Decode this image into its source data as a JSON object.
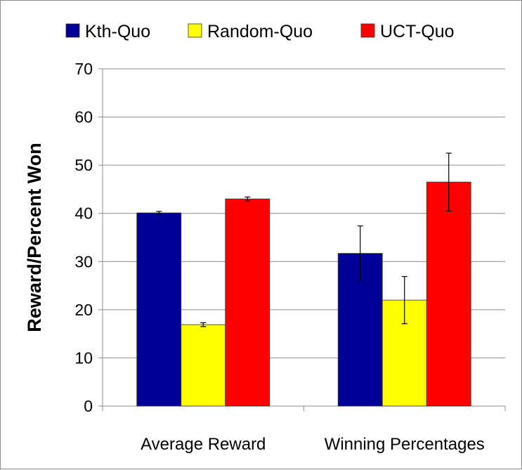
{
  "chart_data": {
    "type": "bar",
    "title": "",
    "xlabel": "",
    "ylabel": "Reward/Percent Won",
    "ylim": [
      0,
      70
    ],
    "yticks": [
      "0",
      "10",
      "20",
      "30",
      "40",
      "50",
      "60",
      "70"
    ],
    "grid": true,
    "legend_position": "top",
    "categories": [
      "Average Reward",
      "Winning Percentages"
    ],
    "series": [
      {
        "name": "Kth-Quo",
        "color": "#000099",
        "values": [
          40.1,
          31.7
        ],
        "errors": [
          0.3,
          5.7
        ]
      },
      {
        "name": "Random-Quo",
        "color": "#ffff00",
        "values": [
          16.9,
          22.0
        ],
        "errors": [
          0.4,
          4.9
        ]
      },
      {
        "name": "UCT-Quo",
        "color": "#ff0000",
        "values": [
          43.0,
          46.5
        ],
        "errors": [
          0.4,
          6.0
        ]
      }
    ]
  }
}
